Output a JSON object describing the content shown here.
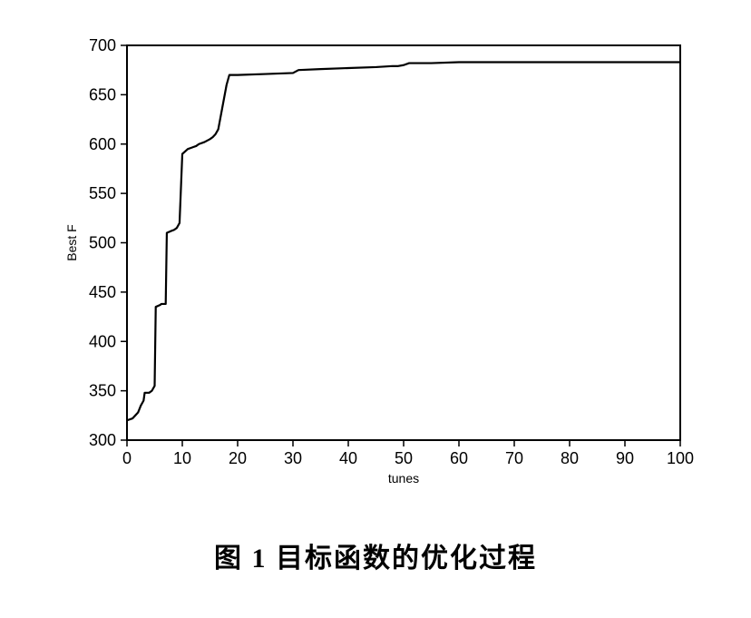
{
  "chart": {
    "type": "line",
    "xlabel": "tunes",
    "ylabel": "Best F",
    "xlabel_fontsize": 14,
    "ylabel_fontsize": 14,
    "tick_fontsize": 18,
    "xlim": [
      0,
      100
    ],
    "ylim": [
      300,
      700
    ],
    "xticks": [
      0,
      10,
      20,
      30,
      40,
      50,
      60,
      70,
      80,
      90,
      100
    ],
    "yticks": [
      300,
      350,
      400,
      450,
      500,
      550,
      600,
      650,
      700
    ],
    "background_color": "#ffffff",
    "axis_color": "#000000",
    "tick_color": "#000000",
    "line_color": "#000000",
    "line_width": 2.2,
    "series": {
      "x": [
        0,
        1,
        1.5,
        2,
        2.5,
        3,
        3.2,
        4,
        4.5,
        5,
        5.2,
        6,
        6.2,
        7,
        7.2,
        8,
        8.5,
        9,
        9.5,
        10,
        11,
        11.5,
        12,
        12.5,
        13,
        14,
        15,
        15.5,
        16,
        16.5,
        17,
        18,
        18.5,
        19,
        20,
        25,
        30,
        31,
        35,
        40,
        45,
        48,
        49,
        50,
        51,
        55,
        60,
        70,
        80,
        90,
        100
      ],
      "y": [
        320,
        322,
        325,
        328,
        335,
        340,
        348,
        348,
        350,
        355,
        435,
        437,
        438,
        438,
        510,
        512,
        513,
        515,
        520,
        590,
        595,
        596,
        597,
        598,
        600,
        602,
        605,
        607,
        610,
        615,
        630,
        660,
        670,
        670,
        670,
        671,
        672,
        675,
        676,
        677,
        678,
        679,
        679,
        680,
        682,
        682,
        683,
        683,
        683,
        683,
        683
      ]
    }
  },
  "caption": "图 1   目标函数的优化过程"
}
